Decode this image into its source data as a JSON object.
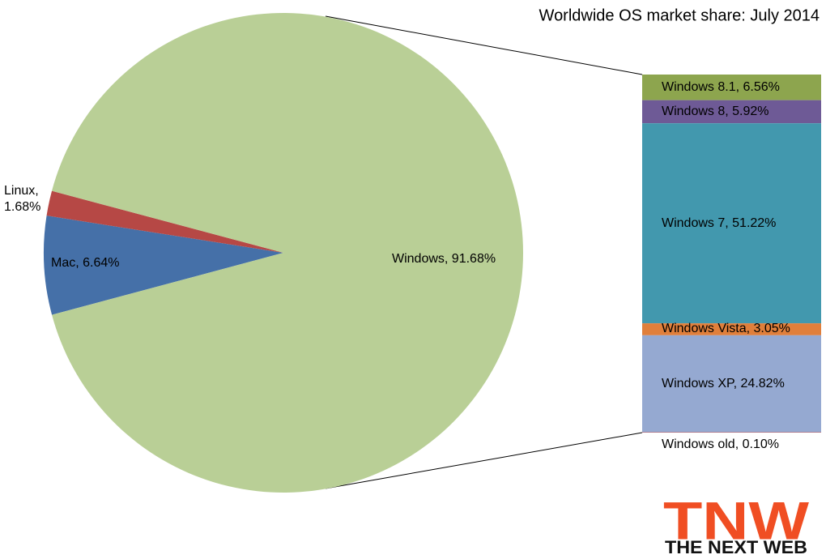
{
  "chart_data": {
    "type": "pie-of-bar",
    "title": "Worldwide OS market share: July 2014",
    "pie": {
      "labels": [
        "Mac, 6.64%",
        "Linux, 1.68%",
        "Windows, 91.68%"
      ],
      "values": [
        6.64,
        1.68,
        91.68
      ],
      "colors": [
        "#4570a8",
        "#b64845",
        "#b9cf96"
      ]
    },
    "bar": {
      "labels": [
        "Windows 8.1, 6.56%",
        "Windows 8, 5.92%",
        "Windows 7, 51.22%",
        "Windows Vista, 3.05%",
        "Windows XP, 24.82%",
        "Windows old, 0.10%"
      ],
      "values": [
        6.56,
        5.92,
        51.22,
        3.05,
        24.82,
        0.1
      ],
      "colors": [
        "#8da54e",
        "#6e5a96",
        "#4298ae",
        "#e07f3b",
        "#95a9d1",
        "#c0504d"
      ]
    }
  },
  "logo": {
    "mark": "TNW",
    "name": "THE NEXT WEB"
  }
}
